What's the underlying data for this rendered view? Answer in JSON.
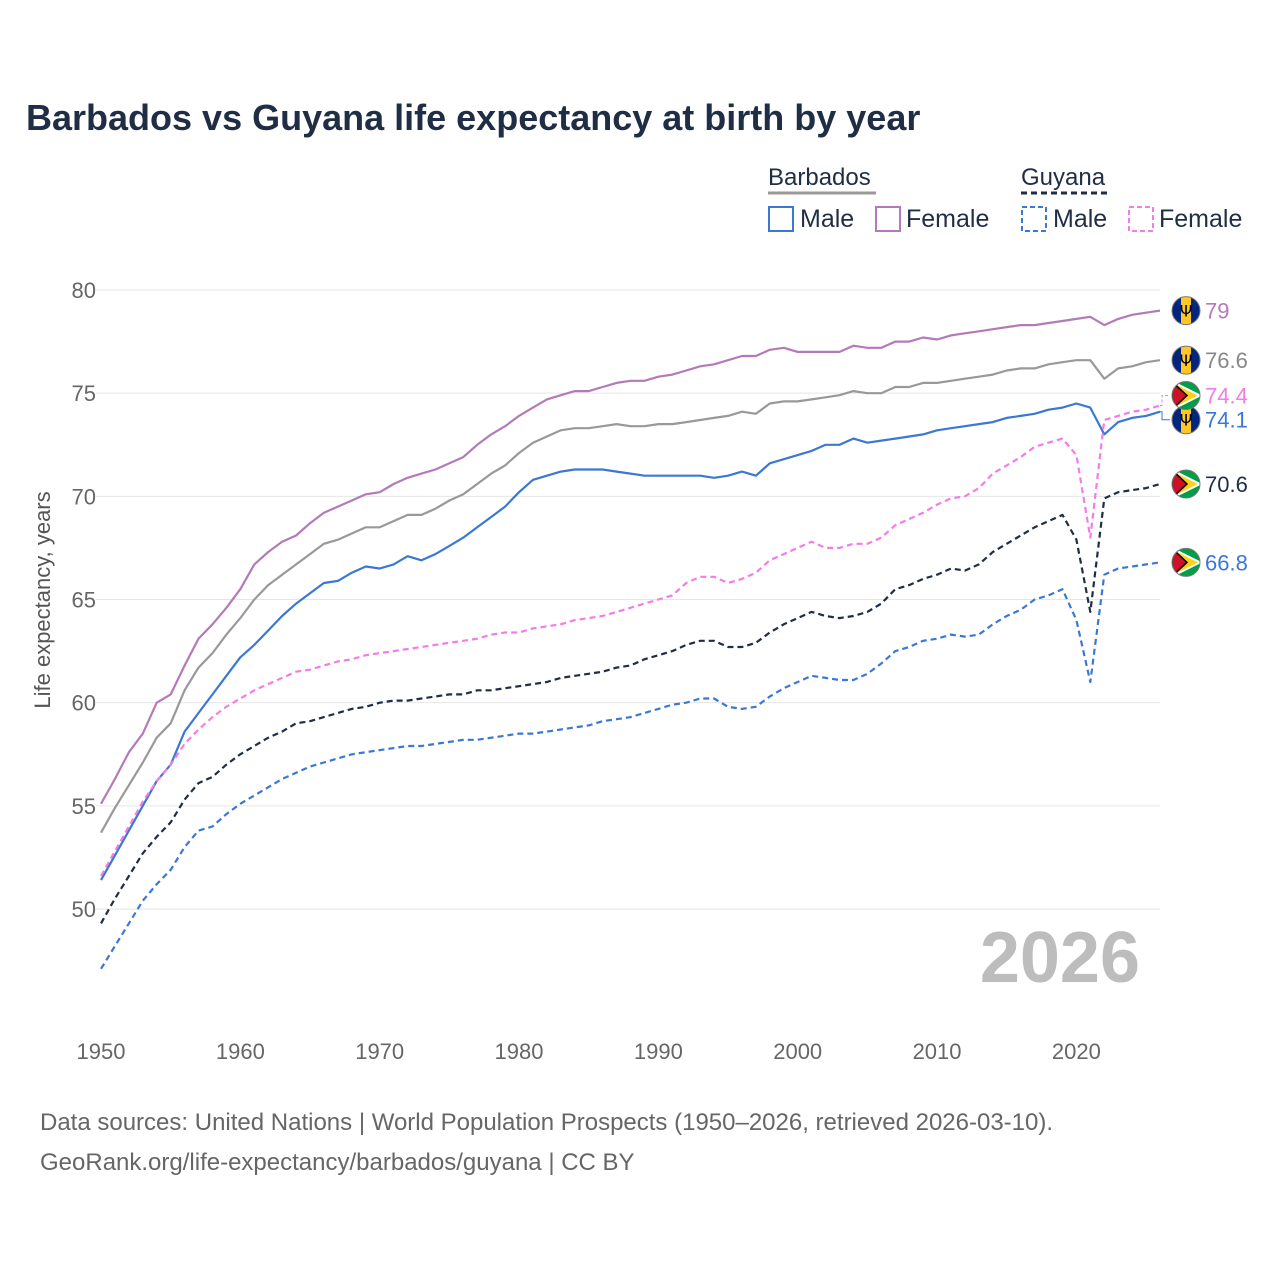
{
  "chart_data": {
    "type": "line",
    "title": "Barbados vs Guyana life expectancy at birth by year",
    "xlabel": "",
    "ylabel": "Life expectancy, years",
    "xlim": [
      1950,
      2026
    ],
    "ylim": [
      45,
      82
    ],
    "x_ticks": [
      1950,
      1960,
      1970,
      1980,
      1990,
      2000,
      2010,
      2020
    ],
    "y_ticks": [
      50,
      55,
      60,
      65,
      70,
      75,
      80
    ],
    "grid": true,
    "year_watermark": "2026",
    "legend": {
      "position": "top-right",
      "groups": [
        {
          "name": "Barbados",
          "style": "solid",
          "color": "#999999",
          "items": [
            {
              "label": "Male",
              "color": "#3b78d4"
            },
            {
              "label": "Female",
              "color": "#b47ab8"
            }
          ]
        },
        {
          "name": "Guyana",
          "style": "dashed",
          "color": "#1f2d45",
          "items": [
            {
              "label": "Male",
              "color": "#3b78d4"
            },
            {
              "label": "Female",
              "color": "#f27de8"
            }
          ]
        }
      ]
    },
    "x": [
      1950,
      1951,
      1952,
      1953,
      1954,
      1955,
      1956,
      1957,
      1958,
      1959,
      1960,
      1961,
      1962,
      1963,
      1964,
      1965,
      1966,
      1967,
      1968,
      1969,
      1970,
      1971,
      1972,
      1973,
      1974,
      1975,
      1976,
      1977,
      1978,
      1979,
      1980,
      1981,
      1982,
      1983,
      1984,
      1985,
      1986,
      1987,
      1988,
      1989,
      1990,
      1991,
      1992,
      1993,
      1994,
      1995,
      1996,
      1997,
      1998,
      1999,
      2000,
      2001,
      2002,
      2003,
      2004,
      2005,
      2006,
      2007,
      2008,
      2009,
      2010,
      2011,
      2012,
      2013,
      2014,
      2015,
      2016,
      2017,
      2018,
      2019,
      2020,
      2021,
      2022,
      2023,
      2024,
      2025,
      2026
    ],
    "series": [
      {
        "name": "Barbados Female",
        "country": "Barbados",
        "sex": "Female",
        "color": "#b47ab8",
        "dash": false,
        "end_label": "79",
        "values": [
          55.1,
          56.3,
          57.6,
          58.5,
          60.0,
          60.4,
          61.8,
          63.1,
          63.8,
          64.6,
          65.5,
          66.7,
          67.3,
          67.8,
          68.1,
          68.7,
          69.2,
          69.5,
          69.8,
          70.1,
          70.2,
          70.6,
          70.9,
          71.1,
          71.3,
          71.6,
          71.9,
          72.5,
          73.0,
          73.4,
          73.9,
          74.3,
          74.7,
          74.9,
          75.1,
          75.1,
          75.3,
          75.5,
          75.6,
          75.6,
          75.8,
          75.9,
          76.1,
          76.3,
          76.4,
          76.6,
          76.8,
          76.8,
          77.1,
          77.2,
          77.0,
          77.0,
          77.0,
          77.0,
          77.3,
          77.2,
          77.2,
          77.5,
          77.5,
          77.7,
          77.6,
          77.8,
          77.9,
          78.0,
          78.1,
          78.2,
          78.3,
          78.3,
          78.4,
          78.5,
          78.6,
          78.7,
          78.3,
          78.6,
          78.8,
          78.9,
          79.0
        ]
      },
      {
        "name": "Barbados Total",
        "country": "Barbados",
        "sex": "Total",
        "color": "#999999",
        "dash": false,
        "end_label": "76.6",
        "values": [
          53.7,
          54.9,
          56.0,
          57.1,
          58.3,
          59.0,
          60.6,
          61.7,
          62.4,
          63.3,
          64.1,
          65.0,
          65.7,
          66.2,
          66.7,
          67.2,
          67.7,
          67.9,
          68.2,
          68.5,
          68.5,
          68.8,
          69.1,
          69.1,
          69.4,
          69.8,
          70.1,
          70.6,
          71.1,
          71.5,
          72.1,
          72.6,
          72.9,
          73.2,
          73.3,
          73.3,
          73.4,
          73.5,
          73.4,
          73.4,
          73.5,
          73.5,
          73.6,
          73.7,
          73.8,
          73.9,
          74.1,
          74.0,
          74.5,
          74.6,
          74.6,
          74.7,
          74.8,
          74.9,
          75.1,
          75.0,
          75.0,
          75.3,
          75.3,
          75.5,
          75.5,
          75.6,
          75.7,
          75.8,
          75.9,
          76.1,
          76.2,
          76.2,
          76.4,
          76.5,
          76.6,
          76.6,
          75.7,
          76.2,
          76.3,
          76.5,
          76.6
        ]
      },
      {
        "name": "Barbados Male",
        "country": "Barbados",
        "sex": "Male",
        "color": "#3b78d4",
        "dash": false,
        "end_label": "74.1",
        "values": [
          51.4,
          52.6,
          53.8,
          55.0,
          56.2,
          57.0,
          58.6,
          59.5,
          60.4,
          61.3,
          62.2,
          62.8,
          63.5,
          64.2,
          64.8,
          65.3,
          65.8,
          65.9,
          66.3,
          66.6,
          66.5,
          66.7,
          67.1,
          66.9,
          67.2,
          67.6,
          68.0,
          68.5,
          69.0,
          69.5,
          70.2,
          70.8,
          71.0,
          71.2,
          71.3,
          71.3,
          71.3,
          71.2,
          71.1,
          71.0,
          71.0,
          71.0,
          71.0,
          71.0,
          70.9,
          71.0,
          71.2,
          71.0,
          71.6,
          71.8,
          72.0,
          72.2,
          72.5,
          72.5,
          72.8,
          72.6,
          72.7,
          72.8,
          72.9,
          73.0,
          73.2,
          73.3,
          73.4,
          73.5,
          73.6,
          73.8,
          73.9,
          74.0,
          74.2,
          74.3,
          74.5,
          74.3,
          73.0,
          73.6,
          73.8,
          73.9,
          74.1
        ]
      },
      {
        "name": "Guyana Female",
        "country": "Guyana",
        "sex": "Female",
        "color": "#f27de8",
        "dash": true,
        "end_label": "74.4",
        "values": [
          51.6,
          52.8,
          54.0,
          55.2,
          56.2,
          57.0,
          58.0,
          58.7,
          59.3,
          59.8,
          60.2,
          60.6,
          60.9,
          61.2,
          61.5,
          61.6,
          61.8,
          62.0,
          62.1,
          62.3,
          62.4,
          62.5,
          62.6,
          62.7,
          62.8,
          62.9,
          63.0,
          63.1,
          63.3,
          63.4,
          63.4,
          63.6,
          63.7,
          63.8,
          64.0,
          64.1,
          64.2,
          64.4,
          64.6,
          64.8,
          65.0,
          65.2,
          65.8,
          66.1,
          66.1,
          65.8,
          66.0,
          66.3,
          66.9,
          67.2,
          67.5,
          67.8,
          67.5,
          67.5,
          67.7,
          67.7,
          68.0,
          68.6,
          68.9,
          69.2,
          69.6,
          69.9,
          70.0,
          70.4,
          71.1,
          71.5,
          71.9,
          72.4,
          72.6,
          72.8,
          72.0,
          68.0,
          73.7,
          73.9,
          74.1,
          74.2,
          74.4
        ]
      },
      {
        "name": "Guyana Total",
        "country": "Guyana",
        "sex": "Total",
        "color": "#1f2d45",
        "dash": true,
        "end_label": "70.6",
        "values": [
          49.3,
          50.5,
          51.6,
          52.7,
          53.5,
          54.2,
          55.3,
          56.1,
          56.4,
          57.0,
          57.5,
          57.9,
          58.3,
          58.6,
          59.0,
          59.1,
          59.3,
          59.5,
          59.7,
          59.8,
          60.0,
          60.1,
          60.1,
          60.2,
          60.3,
          60.4,
          60.4,
          60.6,
          60.6,
          60.7,
          60.8,
          60.9,
          61.0,
          61.2,
          61.3,
          61.4,
          61.5,
          61.7,
          61.8,
          62.1,
          62.3,
          62.5,
          62.8,
          63.0,
          63.0,
          62.7,
          62.7,
          62.9,
          63.4,
          63.8,
          64.1,
          64.4,
          64.2,
          64.1,
          64.2,
          64.4,
          64.8,
          65.5,
          65.7,
          66.0,
          66.2,
          66.5,
          66.4,
          66.7,
          67.3,
          67.7,
          68.1,
          68.5,
          68.8,
          69.1,
          67.9,
          64.4,
          69.9,
          70.2,
          70.3,
          70.4,
          70.6
        ]
      },
      {
        "name": "Guyana Male",
        "country": "Guyana",
        "sex": "Male",
        "color": "#3b78d4",
        "dash": true,
        "end_label": "66.8",
        "values": [
          47.1,
          48.2,
          49.3,
          50.4,
          51.2,
          51.9,
          53.0,
          53.8,
          54.0,
          54.6,
          55.1,
          55.5,
          55.9,
          56.3,
          56.6,
          56.9,
          57.1,
          57.3,
          57.5,
          57.6,
          57.7,
          57.8,
          57.9,
          57.9,
          58.0,
          58.1,
          58.2,
          58.2,
          58.3,
          58.4,
          58.5,
          58.5,
          58.6,
          58.7,
          58.8,
          58.9,
          59.1,
          59.2,
          59.3,
          59.5,
          59.7,
          59.9,
          60.0,
          60.2,
          60.2,
          59.8,
          59.7,
          59.8,
          60.3,
          60.7,
          61.0,
          61.3,
          61.2,
          61.1,
          61.1,
          61.4,
          61.9,
          62.5,
          62.7,
          63.0,
          63.1,
          63.3,
          63.2,
          63.3,
          63.8,
          64.2,
          64.5,
          65.0,
          65.2,
          65.5,
          64.0,
          61.0,
          66.2,
          66.5,
          66.6,
          66.7,
          66.8
        ]
      }
    ]
  },
  "source": {
    "line1": "Data sources: United Nations | World Population Prospects (1950–2026, retrieved 2026-03-10).",
    "line2": "GeoRank.org/life-expectancy/barbados/guyana | CC BY"
  }
}
